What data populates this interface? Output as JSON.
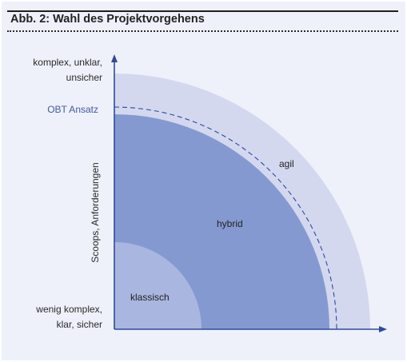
{
  "figure": {
    "title": "Abb. 2: Wahl des Projektvorgehens"
  },
  "y_axis": {
    "title": "Scoops, Anforderungen",
    "top_label_line1": "komplex, unklar,",
    "top_label_line2": "unsicher",
    "bottom_label_line1": "wenig komplex,",
    "bottom_label_line2": "klar, sicher",
    "marker_label": "OBT Ansatz"
  },
  "zones": {
    "outer": "agil",
    "middle": "hybrid",
    "inner": "klassisch"
  },
  "colors": {
    "panel_bg": "#eef1fa",
    "agil": "#d3d8ef",
    "hybrid": "#8599d1",
    "klassisch": "#a9b6e0",
    "axis": "#2d4a9a",
    "obt_dashed": "#2d4a9a"
  }
}
